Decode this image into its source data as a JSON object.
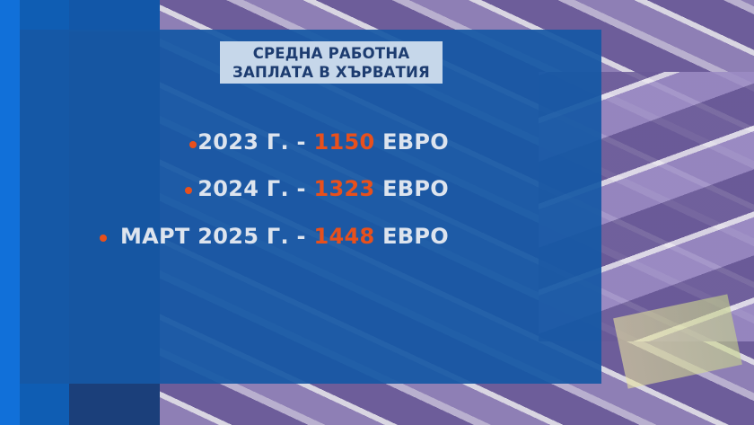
{
  "title": {
    "line1": "СРЕДНА РАБОТНА",
    "line2": "ЗАПЛАТА В ХЪРВАТИЯ"
  },
  "items": [
    {
      "label": "2023 Г. - ",
      "value": "1150",
      "unit": " ЕВРО"
    },
    {
      "label": "2024 Г. - ",
      "value": "1323",
      "unit": " ЕВРО"
    },
    {
      "label": "МАРТ 2025 Г. - ",
      "value": "1448",
      "unit": " ЕВРО"
    }
  ],
  "colors": {
    "accent": "#e8501c",
    "panel": "#1658a5",
    "title_bg": "#c6d7ea",
    "title_text": "#1d3c70"
  },
  "background_image": "euro-banknotes"
}
